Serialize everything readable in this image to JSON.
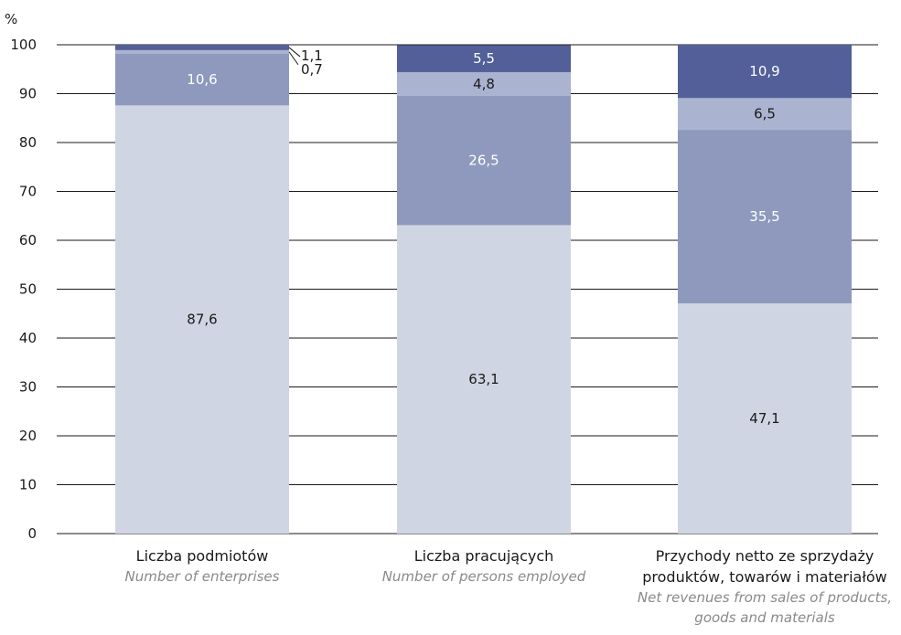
{
  "chart_data": {
    "type": "bar",
    "stacked": true,
    "y_unit": "%",
    "ylim": [
      0,
      100
    ],
    "y_ticks": [
      0,
      10,
      20,
      30,
      40,
      50,
      60,
      70,
      80,
      90,
      100
    ],
    "grid": true,
    "categories": [
      {
        "pl": [
          "Liczba podmiotów"
        ],
        "en": [
          "Number of enterprises"
        ]
      },
      {
        "pl": [
          "Liczba pracujących"
        ],
        "en": [
          "Number of persons employed"
        ]
      },
      {
        "pl": [
          "Przychody netto ze sprzydaży",
          "produktów, towarów i materiałów"
        ],
        "en": [
          "Net revenues from sales of products,",
          "goods and materials"
        ]
      }
    ],
    "series": [
      {
        "values": [
          87.6,
          63.1,
          47.1
        ],
        "labels": [
          "87,6",
          "63,1",
          "47,1"
        ],
        "color": "#cfd5e2",
        "label_color": "#1a1a1a"
      },
      {
        "values": [
          10.6,
          26.5,
          35.5
        ],
        "labels": [
          "10,6",
          "26,5",
          "35,5"
        ],
        "color": "#8e99bd",
        "label_color": "#ffffff"
      },
      {
        "values": [
          0.7,
          4.8,
          6.5
        ],
        "labels": [
          "0,7",
          "4,8",
          "6,5"
        ],
        "color": "#aab3d0",
        "label_color": "#1a1a1a"
      },
      {
        "values": [
          1.1,
          5.5,
          10.9
        ],
        "labels": [
          "1,1",
          "5,5",
          "10,9"
        ],
        "color": "#525f99",
        "label_color": "#ffffff"
      }
    ]
  }
}
